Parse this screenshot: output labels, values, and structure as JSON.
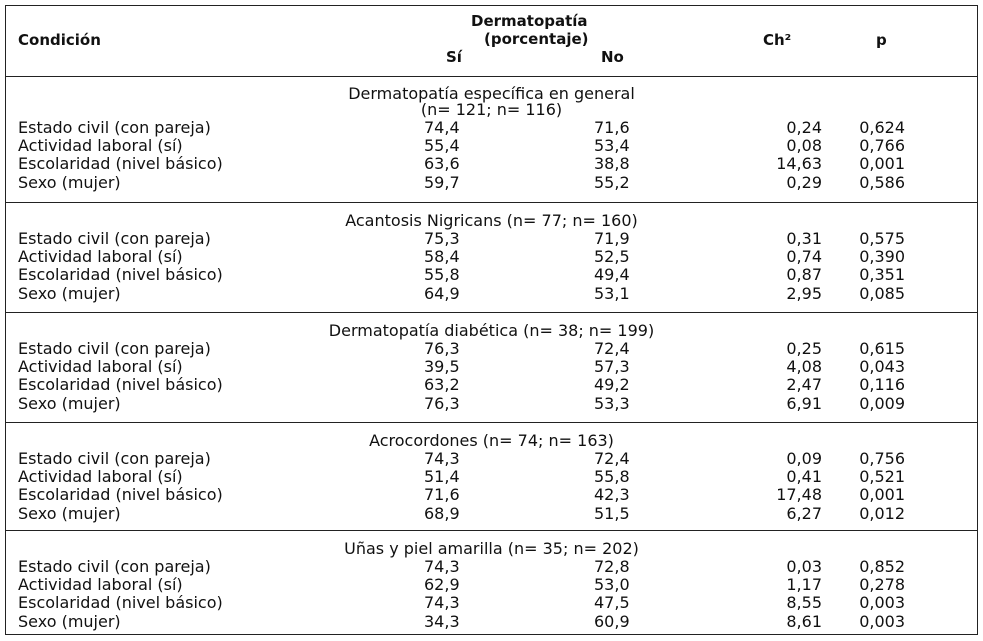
{
  "header": {
    "condicion": "Condición",
    "dermatopatia": "Dermatopatía",
    "porcentaje": "(porcentaje)",
    "si": "Sí",
    "no": "No",
    "ch2": "Ch²",
    "p": "p"
  },
  "sections": [
    {
      "title": "Dermatopatía específica en general",
      "subtitle": "(n= 121; n= 116)",
      "rows": [
        {
          "cond": "Estado civil (con pareja)",
          "si": "74,4",
          "no": "71,6",
          "ch2": "0,24",
          "p": "0,624"
        },
        {
          "cond": "Actividad laboral (sí)",
          "si": "55,4",
          "no": "53,4",
          "ch2": "0,08",
          "p": "0,766"
        },
        {
          "cond": "Escolaridad (nivel básico)",
          "si": "63,6",
          "no": "38,8",
          "ch2": "14,63",
          "p": "0,001"
        },
        {
          "cond": "Sexo (mujer)",
          "si": "59,7",
          "no": "55,2",
          "ch2": "0,29",
          "p": "0,586"
        }
      ]
    },
    {
      "title": "Acantosis Nigricans (n= 77; n= 160)",
      "rows": [
        {
          "cond": "Estado civil (con pareja)",
          "si": "75,3",
          "no": "71,9",
          "ch2": "0,31",
          "p": "0,575"
        },
        {
          "cond": "Actividad laboral (sí)",
          "si": "58,4",
          "no": "52,5",
          "ch2": "0,74",
          "p": "0,390"
        },
        {
          "cond": "Escolaridad (nivel básico)",
          "si": "55,8",
          "no": "49,4",
          "ch2": "0,87",
          "p": "0,351"
        },
        {
          "cond": "Sexo (mujer)",
          "si": "64,9",
          "no": "53,1",
          "ch2": "2,95",
          "p": "0,085"
        }
      ]
    },
    {
      "title": "Dermatopatía diabética (n= 38; n= 199)",
      "rows": [
        {
          "cond": "Estado civil (con pareja)",
          "si": "76,3",
          "no": "72,4",
          "ch2": "0,25",
          "p": "0,615"
        },
        {
          "cond": "Actividad laboral (sí)",
          "si": "39,5",
          "no": "57,3",
          "ch2": "4,08",
          "p": "0,043"
        },
        {
          "cond": "Escolaridad (nivel básico)",
          "si": "63,2",
          "no": "49,2",
          "ch2": "2,47",
          "p": "0,116"
        },
        {
          "cond": "Sexo (mujer)",
          "si": "76,3",
          "no": "53,3",
          "ch2": "6,91",
          "p": "0,009"
        }
      ]
    },
    {
      "title": "Acrocordones (n= 74; n= 163)",
      "rows": [
        {
          "cond": "Estado civil (con pareja)",
          "si": "74,3",
          "no": "72,4",
          "ch2": "0,09",
          "p": "0,756"
        },
        {
          "cond": "Actividad laboral (sí)",
          "si": "51,4",
          "no": "55,8",
          "ch2": "0,41",
          "p": "0,521"
        },
        {
          "cond": "Escolaridad (nivel básico)",
          "si": "71,6",
          "no": "42,3",
          "ch2": "17,48",
          "p": "0,001"
        },
        {
          "cond": "Sexo (mujer)",
          "si": "68,9",
          "no": "51,5",
          "ch2": "6,27",
          "p": "0,012"
        }
      ]
    },
    {
      "title": "Uñas y piel amarilla (n= 35; n= 202)",
      "rows": [
        {
          "cond": "Estado civil (con pareja)",
          "si": "74,3",
          "no": "72,8",
          "ch2": "0,03",
          "p": "0,852"
        },
        {
          "cond": "Actividad laboral (sí)",
          "si": "62,9",
          "no": "53,0",
          "ch2": "1,17",
          "p": "0,278"
        },
        {
          "cond": "Escolaridad (nivel básico)",
          "si": "74,3",
          "no": "47,5",
          "ch2": "8,55",
          "p": "0,003"
        },
        {
          "cond": "Sexo (mujer)",
          "si": "34,3",
          "no": "60,9",
          "ch2": "8,61",
          "p": "0,003"
        }
      ]
    }
  ]
}
